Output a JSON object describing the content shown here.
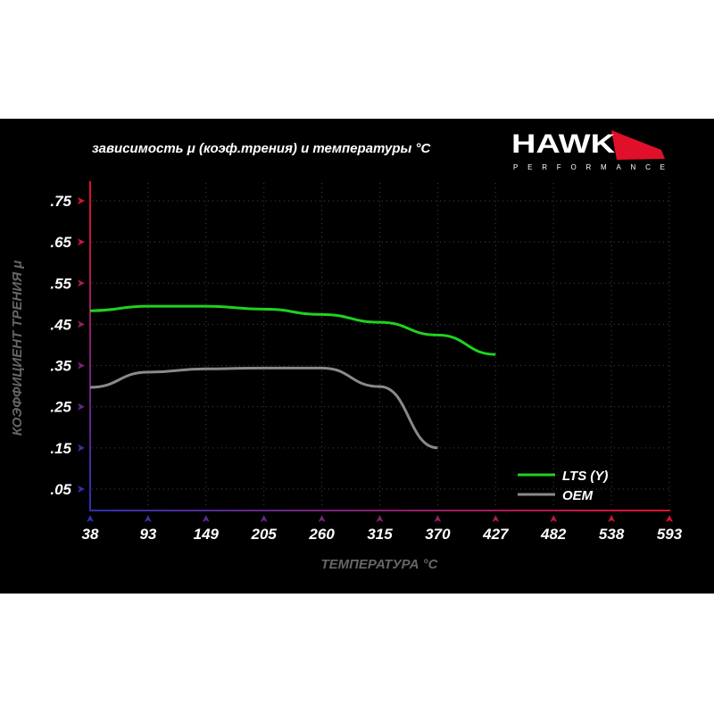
{
  "title": "зависимость μ (коэф.трения) и температуры °C",
  "logo": {
    "brand": "HAWK",
    "sub": "PERFORMANCE",
    "accent": "#e0102a"
  },
  "chart_data": {
    "type": "line",
    "title": "зависимость μ (коэф.трения) и температуры °C",
    "xlabel": "ТЕМПЕРАТУРА °C",
    "ylabel": "КОЭФФИЦИЕНТ ТРЕНИЯ μ",
    "x_ticks": [
      "38",
      "93",
      "149",
      "205",
      "260",
      "315",
      "370",
      "427",
      "482",
      "538",
      "593"
    ],
    "y_ticks": [
      ".75",
      ".65",
      ".55",
      ".45",
      ".35",
      ".25",
      ".15",
      ".05"
    ],
    "ylim": [
      0,
      0.8
    ],
    "grid": true,
    "legend": "bottom-right",
    "series": [
      {
        "name": "LTS (Y)",
        "color": "#1fd21f",
        "x": [
          38,
          93,
          149,
          205,
          260,
          315,
          370,
          427
        ],
        "y": [
          0.483,
          0.494,
          0.494,
          0.487,
          0.474,
          0.455,
          0.424,
          0.377
        ]
      },
      {
        "name": "OEM",
        "color": "#8a8a8a",
        "x": [
          38,
          93,
          149,
          205,
          260,
          315,
          370
        ],
        "y": [
          0.297,
          0.334,
          0.342,
          0.344,
          0.344,
          0.299,
          0.15
        ]
      }
    ]
  }
}
